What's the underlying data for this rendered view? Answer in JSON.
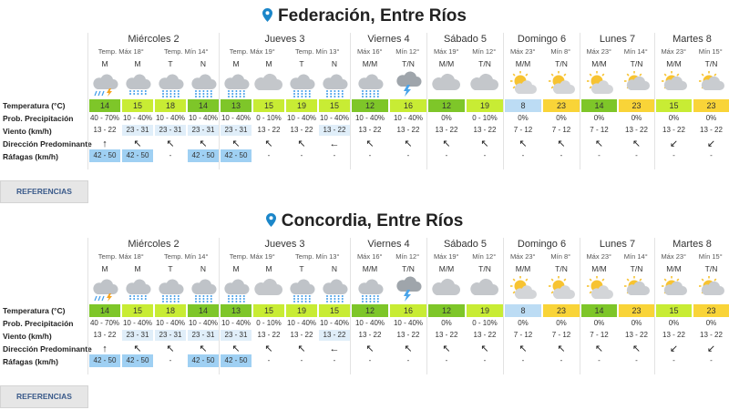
{
  "colors": {
    "green": "#7ec629",
    "lime": "#c8ec34",
    "yellow": "#f9d438",
    "lightblue": "#bcdcf4",
    "paleblue": "#e0eef9",
    "darkblue": "#93c7ee",
    "gust": "#9fd0f3"
  },
  "row_labels": [
    "Temperatura (°C)",
    "Prob. Precipitación",
    "Viento (km/h)",
    "Dirección Predominante",
    "Ráfagas (km/h)"
  ],
  "button_label": "REFERENCIAS",
  "locations": [
    {
      "title": "Federación, Entre Ríos"
    },
    {
      "title": "Concordia, Entre Ríos"
    }
  ],
  "days": [
    {
      "name": "Miércoles 2",
      "temps": [
        "Temp. Máx 18°",
        "Temp. Mín 14°"
      ]
    },
    {
      "name": "Jueves 3",
      "temps": [
        "Temp. Máx 19°",
        "Temp. Mín 13°"
      ]
    },
    {
      "name": "Viernes 4",
      "temps": [
        "Máx 16°",
        "Mín 12°"
      ]
    },
    {
      "name": "Sábado 5",
      "temps": [
        "Máx 19°",
        "Mín 12°"
      ]
    },
    {
      "name": "Domingo 6",
      "temps": [
        "Máx 23°",
        "Mín 8°"
      ]
    },
    {
      "name": "Lunes 7",
      "temps": [
        "Máx 23°",
        "Mín 14°"
      ]
    },
    {
      "name": "Martes 8",
      "temps": [
        "Máx 23°",
        "Mín 15°"
      ]
    }
  ],
  "periods": [
    {
      "label": "M",
      "icon": "storm-rain-icon",
      "temp": "14",
      "tcolor": "green",
      "precip": "40 - 70%",
      "wind": "13 - 22",
      "wcolor": "",
      "dir": "↑",
      "gust": "42 - 50",
      "gcolor": "gust"
    },
    {
      "label": "M",
      "icon": "rain-icon",
      "temp": "15",
      "tcolor": "lime",
      "precip": "10 - 40%",
      "wind": "23 - 31",
      "wcolor": "paleblue",
      "dir": "↖",
      "gust": "42 - 50",
      "gcolor": "gust"
    },
    {
      "label": "T",
      "icon": "heavy-rain-icon",
      "temp": "18",
      "tcolor": "lime",
      "precip": "10 - 40%",
      "wind": "23 - 31",
      "wcolor": "paleblue",
      "dir": "↖",
      "gust": "-",
      "gcolor": ""
    },
    {
      "label": "N",
      "icon": "heavy-rain-icon",
      "temp": "14",
      "tcolor": "green",
      "precip": "10 - 40%",
      "wind": "23 - 31",
      "wcolor": "paleblue",
      "dir": "↖",
      "gust": "42 - 50",
      "gcolor": "gust"
    },
    {
      "label": "M",
      "icon": "heavy-rain-icon",
      "temp": "13",
      "tcolor": "green",
      "precip": "10 - 40%",
      "wind": "23 - 31",
      "wcolor": "paleblue",
      "dir": "↖",
      "gust": "42 - 50",
      "gcolor": "gust"
    },
    {
      "label": "M",
      "icon": "cloud-icon",
      "temp": "15",
      "tcolor": "lime",
      "precip": "0 - 10%",
      "wind": "13 - 22",
      "wcolor": "",
      "dir": "↖",
      "gust": "-",
      "gcolor": ""
    },
    {
      "label": "T",
      "icon": "heavy-rain-icon",
      "temp": "19",
      "tcolor": "lime",
      "precip": "10 - 40%",
      "wind": "13 - 22",
      "wcolor": "",
      "dir": "↖",
      "gust": "-",
      "gcolor": ""
    },
    {
      "label": "N",
      "icon": "heavy-rain-icon",
      "temp": "15",
      "tcolor": "lime",
      "precip": "10 - 40%",
      "wind": "13 - 22",
      "wcolor": "paleblue",
      "dir": "←",
      "gust": "-",
      "gcolor": ""
    },
    {
      "label": "M/M",
      "icon": "heavy-rain-icon",
      "temp": "12",
      "tcolor": "green",
      "precip": "10 - 40%",
      "wind": "13 - 22",
      "wcolor": "",
      "dir": "↖",
      "gust": "-",
      "gcolor": ""
    },
    {
      "label": "T/N",
      "icon": "storm-icon",
      "temp": "16",
      "tcolor": "lime",
      "precip": "10 - 40%",
      "wind": "13 - 22",
      "wcolor": "",
      "dir": "↖",
      "gust": "-",
      "gcolor": ""
    },
    {
      "label": "M/M",
      "icon": "cloud-icon",
      "temp": "12",
      "tcolor": "green",
      "precip": "0%",
      "wind": "13 - 22",
      "wcolor": "",
      "dir": "↖",
      "gust": "-",
      "gcolor": ""
    },
    {
      "label": "T/N",
      "icon": "cloud-icon",
      "temp": "19",
      "tcolor": "lime",
      "precip": "0 - 10%",
      "wind": "13 - 22",
      "wcolor": "",
      "dir": "↖",
      "gust": "-",
      "gcolor": ""
    },
    {
      "label": "M/M",
      "icon": "partly-sunny-icon",
      "temp": "8",
      "tcolor": "lightblue",
      "precip": "0%",
      "wind": "7 - 12",
      "wcolor": "",
      "dir": "↖",
      "gust": "-",
      "gcolor": ""
    },
    {
      "label": "T/N",
      "icon": "partly-sunny-icon",
      "temp": "23",
      "tcolor": "yellow",
      "precip": "0%",
      "wind": "7 - 12",
      "wcolor": "",
      "dir": "↖",
      "gust": "-",
      "gcolor": ""
    },
    {
      "label": "M/M",
      "icon": "partly-sunny-icon",
      "temp": "14",
      "tcolor": "green",
      "precip": "0%",
      "wind": "7 - 12",
      "wcolor": "",
      "dir": "↖",
      "gust": "-",
      "gcolor": ""
    },
    {
      "label": "T/N",
      "icon": "sun-cloud-icon",
      "temp": "23",
      "tcolor": "yellow",
      "precip": "0%",
      "wind": "13 - 22",
      "wcolor": "",
      "dir": "↖",
      "gust": "-",
      "gcolor": ""
    },
    {
      "label": "M/M",
      "icon": "sun-cloud-icon",
      "temp": "15",
      "tcolor": "lime",
      "precip": "0%",
      "wind": "13 - 22",
      "wcolor": "",
      "dir": "↙",
      "gust": "-",
      "gcolor": ""
    },
    {
      "label": "T/N",
      "icon": "sun-cloud-icon",
      "temp": "23",
      "tcolor": "yellow",
      "precip": "0%",
      "wind": "13 - 22",
      "wcolor": "",
      "dir": "↙",
      "gust": "-",
      "gcolor": ""
    }
  ]
}
